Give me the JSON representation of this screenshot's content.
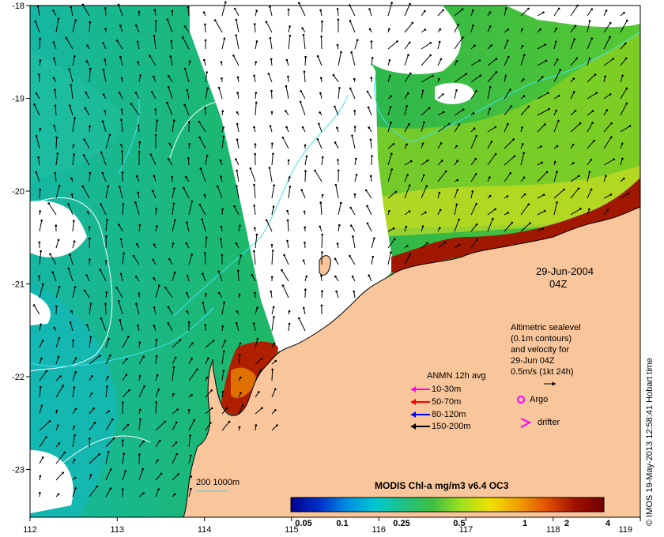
{
  "map": {
    "xticks": [
      "112",
      "113",
      "114",
      "115",
      "116",
      "117",
      "118",
      "119"
    ],
    "yticks": [
      "-18",
      "-19",
      "-20",
      "-21",
      "-22",
      "-23"
    ],
    "date": "29-Jun-2004",
    "time": "04Z",
    "altimetry_note": [
      "Altimetric sealevel",
      "(0.1m contours)",
      "and velocity for",
      "29-Jun 04Z",
      "0.5m/s (1kt 24h)"
    ],
    "depth_contour_label": "200  1000m",
    "credit": "© IMOS 19-May-2013 12:58:41 Hobart time",
    "colors": {
      "land": "#f9c59a",
      "ocean_low": "#00a0c8",
      "ocean_mid": "#2fb84a",
      "ocean_high": "#8a1a00",
      "cloud": "#ffffff"
    }
  },
  "anmn_legend": {
    "title": "ANMN 12h avg",
    "items": [
      {
        "label": "10-30m",
        "color": "#ff00ff"
      },
      {
        "label": "50-70m",
        "color": "#ff0000"
      },
      {
        "label": "80-120m",
        "color": "#0000ff"
      },
      {
        "label": "150-200m",
        "color": "#000000"
      }
    ]
  },
  "markers": {
    "argo": {
      "label": "Argo",
      "color": "#ff00ff"
    },
    "drifter": {
      "label": "drifter",
      "color": "#ff00ff"
    }
  },
  "colorbar": {
    "title": "MODIS Chl-a mg/m3 v6.4 OC3",
    "tick_labels": [
      "0.05",
      "0.1",
      "0.25",
      "0.5",
      "1",
      "2",
      "4"
    ],
    "colors": [
      "#00008c",
      "#0030c8",
      "#0090e0",
      "#00c8d0",
      "#20c080",
      "#40c040",
      "#a0e020",
      "#f0e000",
      "#f0a000",
      "#e05000",
      "#a01000",
      "#700000"
    ]
  }
}
